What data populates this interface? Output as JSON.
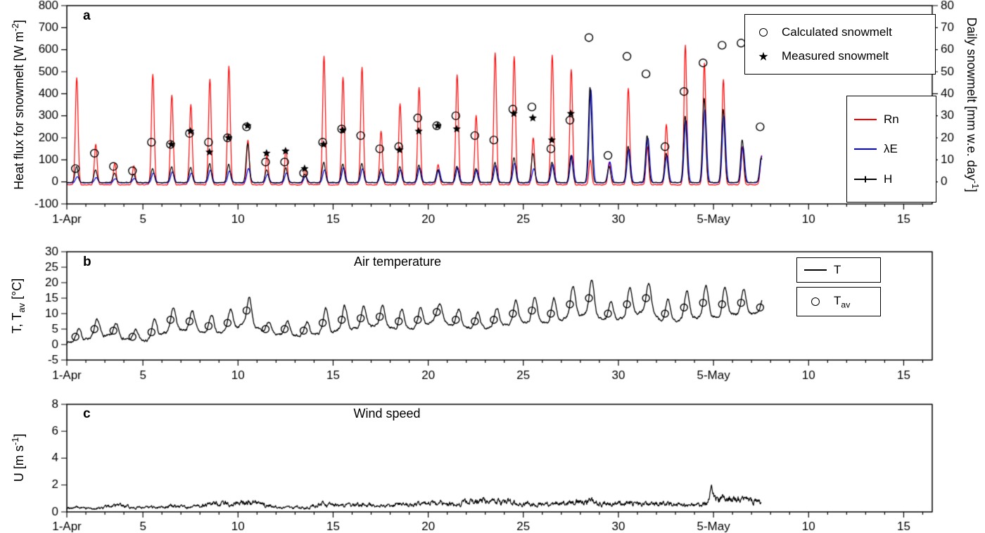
{
  "colors": {
    "rn": "#ff0000",
    "le": "#0000ee",
    "h": "#000000",
    "line": "#000000",
    "axis": "#000000"
  },
  "icons": {
    "star": "★"
  },
  "chart_data": [
    {
      "id": "a",
      "type": "line+scatter",
      "panel_label": "a",
      "ylabel": {
        "pre": "Heat flux for snowmelt [W m",
        "sup": "-2",
        "post": "]"
      },
      "y2label": {
        "pre": "Daily snowmelt [mm w.e. day",
        "sup": "-1",
        "post": "]"
      },
      "xlim": [
        0,
        45.5
      ],
      "ylim": [
        -100,
        800
      ],
      "y2lim": [
        -10,
        80
      ],
      "xticks": [
        {
          "day": 0,
          "label": "1-Apr"
        },
        {
          "day": 4,
          "label": "5"
        },
        {
          "day": 9,
          "label": "10"
        },
        {
          "day": 14,
          "label": "15"
        },
        {
          "day": 19,
          "label": "20"
        },
        {
          "day": 24,
          "label": "25"
        },
        {
          "day": 29,
          "label": "30"
        },
        {
          "day": 34,
          "label": "5-May"
        },
        {
          "day": 39,
          "label": "10"
        },
        {
          "day": 44,
          "label": "15"
        }
      ],
      "yticks": [
        -100,
        0,
        100,
        200,
        300,
        400,
        500,
        600,
        700,
        800
      ],
      "y2ticks": [
        0,
        10,
        20,
        30,
        40,
        50,
        60,
        70,
        80
      ],
      "series": [
        {
          "name": "Rn",
          "color": "rn",
          "daily_peaks": [
            475,
            170,
            85,
            75,
            490,
            395,
            350,
            465,
            525,
            190,
            120,
            150,
            60,
            570,
            475,
            520,
            230,
            355,
            430,
            80,
            485,
            300,
            585,
            570,
            200,
            575,
            510,
            100,
            90,
            425,
            160,
            260,
            620,
            540,
            465,
            160,
            120
          ]
        },
        {
          "name": "λE",
          "color": "le",
          "daily_peaks": [
            25,
            20,
            15,
            15,
            40,
            45,
            40,
            55,
            50,
            60,
            35,
            40,
            25,
            55,
            65,
            60,
            45,
            55,
            65,
            55,
            65,
            55,
            75,
            85,
            60,
            80,
            120,
            420,
            90,
            150,
            200,
            120,
            280,
            330,
            300,
            160,
            120
          ]
        },
        {
          "name": "H",
          "color": "h",
          "daily_peaks": [
            70,
            55,
            40,
            35,
            60,
            70,
            65,
            85,
            80,
            175,
            55,
            65,
            35,
            90,
            80,
            85,
            60,
            70,
            75,
            55,
            70,
            60,
            90,
            110,
            130,
            90,
            120,
            430,
            70,
            160,
            210,
            130,
            300,
            380,
            330,
            190,
            110
          ]
        }
      ],
      "scatter": [
        {
          "name": "Calculated snowmelt",
          "marker": "circle",
          "axis": "y2",
          "daily_values": [
            6,
            13,
            7,
            5,
            18,
            17,
            22,
            18,
            20,
            25,
            9,
            9,
            4,
            18,
            24,
            21,
            15,
            16,
            29,
            25.5,
            30,
            21,
            19,
            33,
            34,
            15,
            28,
            65.5,
            12,
            57,
            49,
            16,
            41,
            54,
            62,
            63,
            25
          ]
        },
        {
          "name": "Measured snowmelt",
          "marker": "star",
          "axis": "y2",
          "points": [
            {
              "day": 5,
              "value": 17
            },
            {
              "day": 6,
              "value": 23
            },
            {
              "day": 7,
              "value": 13.5
            },
            {
              "day": 8,
              "value": 20
            },
            {
              "day": 9,
              "value": 25.5
            },
            {
              "day": 10,
              "value": 13
            },
            {
              "day": 11,
              "value": 14
            },
            {
              "day": 12,
              "value": 6
            },
            {
              "day": 13,
              "value": 17
            },
            {
              "day": 14,
              "value": 23.5
            },
            {
              "day": 17,
              "value": 14.5
            },
            {
              "day": 18,
              "value": 23
            },
            {
              "day": 19,
              "value": 25.5
            },
            {
              "day": 20,
              "value": 24
            },
            {
              "day": 23,
              "value": 31
            },
            {
              "day": 24,
              "value": 29
            },
            {
              "day": 25,
              "value": 19
            },
            {
              "day": 26,
              "value": 31
            }
          ]
        }
      ],
      "legend1": [
        {
          "marker": "circle",
          "label": "Calculated snowmelt"
        },
        {
          "marker": "star",
          "label": "Measured snowmelt"
        }
      ],
      "legend2": [
        {
          "marker": "line",
          "color": "rn",
          "label": "Rn"
        },
        {
          "marker": "line",
          "color": "le",
          "label": "λE"
        },
        {
          "marker": "line-tick",
          "color": "h",
          "label": "H"
        }
      ],
      "data_end_day": 36.55
    },
    {
      "id": "b",
      "type": "line+scatter",
      "panel_label": "b",
      "title": "Air temperature",
      "ylabel": {
        "pre": "T, T",
        "sub": "av",
        "post": " [°C]"
      },
      "xlim": [
        0,
        45.5
      ],
      "ylim": [
        -5,
        30
      ],
      "xticks": [
        {
          "day": 0,
          "label": "1-Apr"
        },
        {
          "day": 4,
          "label": "5"
        },
        {
          "day": 9,
          "label": "10"
        },
        {
          "day": 14,
          "label": "15"
        },
        {
          "day": 19,
          "label": "20"
        },
        {
          "day": 24,
          "label": "25"
        },
        {
          "day": 29,
          "label": "30"
        },
        {
          "day": 34,
          "label": "5-May"
        },
        {
          "day": 39,
          "label": "10"
        },
        {
          "day": 44,
          "label": "15"
        }
      ],
      "yticks": [
        -5,
        0,
        5,
        10,
        15,
        20,
        25,
        30
      ],
      "t_daily_mean": [
        2.5,
        5,
        4.5,
        2.5,
        4,
        8,
        7.5,
        6,
        7,
        11,
        5,
        5,
        4.5,
        7,
        8,
        8.5,
        9,
        7.5,
        8,
        10.5,
        8,
        7.5,
        8,
        10,
        11,
        10,
        13,
        15,
        10,
        13,
        15,
        10,
        12,
        13.5,
        13,
        13.5,
        12
      ],
      "t_daily_amplitude": [
        3,
        4,
        3,
        2.5,
        5,
        5.5,
        5,
        4.5,
        5,
        6.5,
        3.5,
        3.5,
        3,
        6,
        6,
        5.5,
        5,
        5,
        5,
        4,
        4.5,
        4,
        4.5,
        6,
        6,
        6,
        7,
        9,
        5,
        7,
        7,
        6,
        7,
        8,
        7.5,
        6,
        4
      ],
      "legend": [
        {
          "marker": "line",
          "label": "T"
        },
        {
          "marker": "circle",
          "label_pre": "T",
          "label_sub": "av"
        }
      ],
      "data_end_day": 36.55
    },
    {
      "id": "c",
      "type": "line",
      "panel_label": "c",
      "title": "Wind speed",
      "ylabel": {
        "pre": "U [m s",
        "sup": "-1",
        "post": "]"
      },
      "xlim": [
        0,
        45.5
      ],
      "ylim": [
        0,
        8
      ],
      "xticks": [
        {
          "day": 0,
          "label": "1-Apr"
        },
        {
          "day": 4,
          "label": "5"
        },
        {
          "day": 9,
          "label": "10"
        },
        {
          "day": 14,
          "label": "15"
        },
        {
          "day": 19,
          "label": "20"
        },
        {
          "day": 24,
          "label": "25"
        },
        {
          "day": 29,
          "label": "30"
        },
        {
          "day": 34,
          "label": "5-May"
        },
        {
          "day": 39,
          "label": "10"
        },
        {
          "day": 44,
          "label": "15"
        }
      ],
      "yticks": [
        0,
        2,
        4,
        6,
        8
      ],
      "wind_daily_mean": [
        0.3,
        0.2,
        0.45,
        0.3,
        0.3,
        0.4,
        0.3,
        0.5,
        0.55,
        0.7,
        0.4,
        0.3,
        0.3,
        0.5,
        0.4,
        0.5,
        0.4,
        0.5,
        0.5,
        0.6,
        0.5,
        0.7,
        0.75,
        0.6,
        0.5,
        0.5,
        0.6,
        0.7,
        0.5,
        0.6,
        0.5,
        0.6,
        0.4,
        0.5,
        0.9,
        0.8,
        0.6
      ],
      "gusts": [
        {
          "day": 33.9,
          "value": 1.1
        }
      ],
      "data_end_day": 36.5
    }
  ]
}
